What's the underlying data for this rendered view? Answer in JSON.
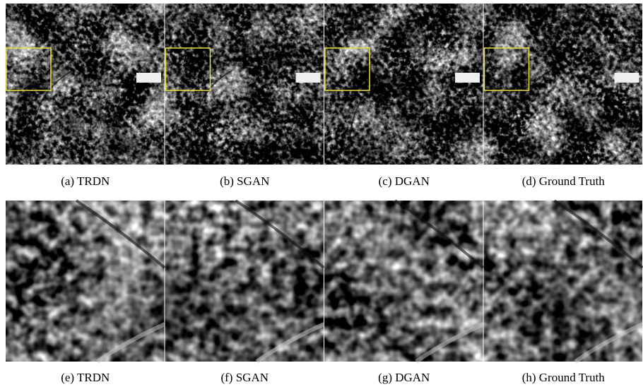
{
  "captions": [
    "(a) TRDN",
    "(b) SGAN",
    "(c) DGAN",
    "(d) Ground Truth",
    "(e) TRDN",
    "(f) SGAN",
    "(g) DGAN",
    "(h) Ground Truth"
  ]
}
